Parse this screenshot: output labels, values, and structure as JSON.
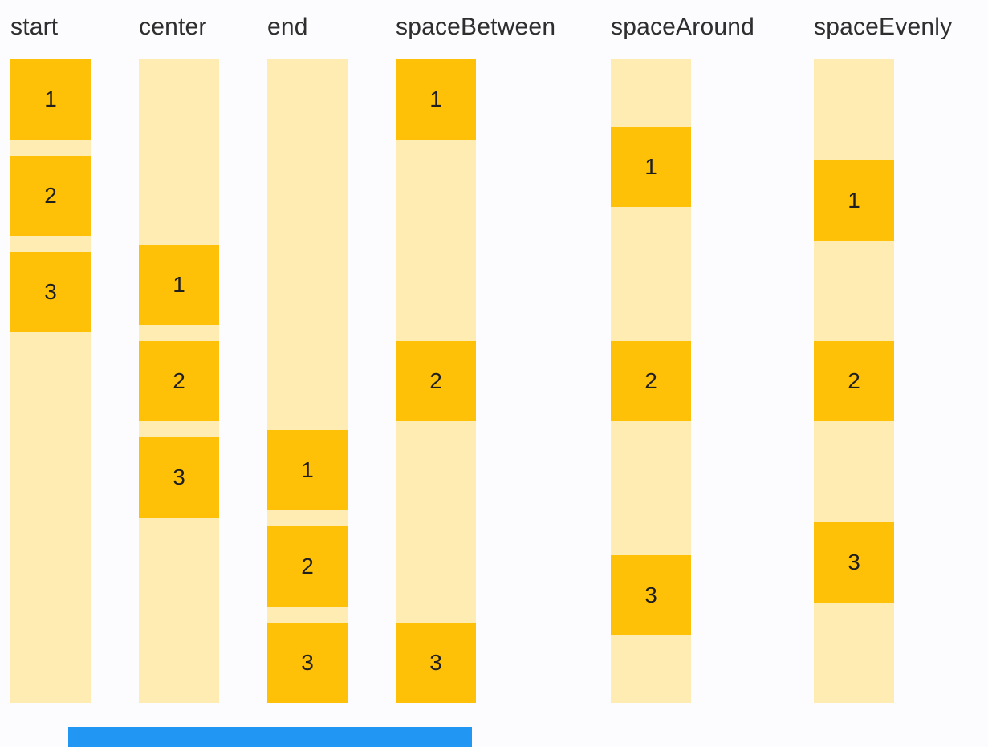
{
  "columns": [
    {
      "label": "start",
      "items": [
        "1",
        "2",
        "3"
      ]
    },
    {
      "label": "center",
      "items": [
        "1",
        "2",
        "3"
      ]
    },
    {
      "label": "end",
      "items": [
        "1",
        "2",
        "3"
      ]
    },
    {
      "label": "spaceBetween",
      "items": [
        "1",
        "2",
        "3"
      ]
    },
    {
      "label": "spaceAround",
      "items": [
        "1",
        "2",
        "3"
      ]
    },
    {
      "label": "spaceEvenly",
      "items": [
        "1",
        "2",
        "3"
      ]
    }
  ],
  "colors": {
    "item_box": "#FFC107",
    "track": "#FFECB3",
    "label_text": "#2E2E2E",
    "number_text": "#1F1F1F",
    "scrollbar_thumb": "#2196F3",
    "background": "#FCFCFE"
  }
}
